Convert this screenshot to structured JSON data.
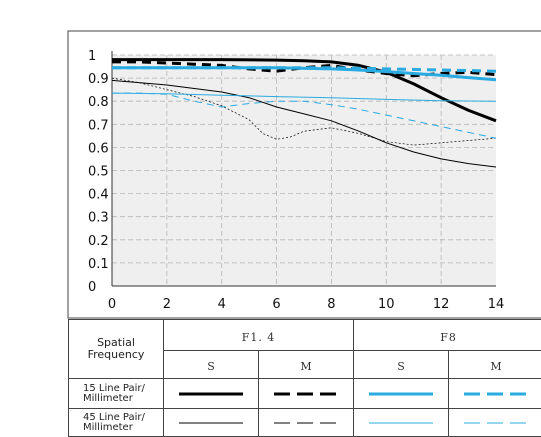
{
  "chart_data": {
    "type": "line",
    "title": "",
    "xlabel": "",
    "ylabel": "",
    "xlim": [
      0,
      14
    ],
    "ylim": [
      0,
      1
    ],
    "x_ticks": [
      "0",
      "2",
      "4",
      "6",
      "8",
      "10",
      "12",
      "14"
    ],
    "y_ticks": [
      "0",
      "0.1",
      "0.2",
      "0.3",
      "0.4",
      "0.5",
      "0.6",
      "0.7",
      "0.8",
      "0.9",
      "1"
    ],
    "grid": true,
    "series": [
      {
        "name": "F1.4 S 15 Line Pair/Millimeter",
        "color": "#000000",
        "dash": "solid",
        "weight": "thick",
        "x": [
          0,
          2,
          4,
          6,
          7,
          8,
          9,
          10,
          11,
          12,
          13,
          14
        ],
        "y": [
          0.98,
          0.98,
          0.98,
          0.978,
          0.975,
          0.97,
          0.955,
          0.925,
          0.875,
          0.815,
          0.76,
          0.715
        ]
      },
      {
        "name": "F1.4 M 15 Line Pair/Millimeter",
        "color": "#000000",
        "dash": "dashed",
        "weight": "thick",
        "x": [
          0,
          1,
          2,
          3,
          4,
          5,
          6,
          7,
          8,
          9,
          10,
          11,
          12,
          13,
          14
        ],
        "y": [
          0.97,
          0.97,
          0.965,
          0.96,
          0.955,
          0.94,
          0.93,
          0.945,
          0.955,
          0.935,
          0.92,
          0.91,
          0.92,
          0.925,
          0.915
        ]
      },
      {
        "name": "F8 S 15 Line Pair/Millimeter",
        "color": "#29abe2",
        "dash": "solid",
        "weight": "thick",
        "x": [
          0,
          2,
          4,
          6,
          8,
          9,
          10,
          11,
          12,
          13,
          14
        ],
        "y": [
          0.945,
          0.945,
          0.945,
          0.945,
          0.94,
          0.935,
          0.928,
          0.92,
          0.912,
          0.902,
          0.893
        ]
      },
      {
        "name": "F8 M 15 Line Pair/Millimeter",
        "color": "#29abe2",
        "dash": "dashed",
        "weight": "thick",
        "x": [
          0,
          2,
          4,
          6,
          8,
          10,
          12,
          14
        ],
        "y": [
          0.945,
          0.945,
          0.945,
          0.945,
          0.945,
          0.94,
          0.935,
          0.93
        ]
      },
      {
        "name": "F1.4 S 45 Line Pair/Millimeter",
        "color": "#000000",
        "dash": "solid",
        "weight": "thin",
        "x": [
          0,
          2,
          4,
          5,
          6,
          7,
          8,
          9,
          10,
          11,
          12,
          13,
          14
        ],
        "y": [
          0.89,
          0.87,
          0.84,
          0.815,
          0.775,
          0.745,
          0.715,
          0.67,
          0.62,
          0.58,
          0.55,
          0.53,
          0.515
        ]
      },
      {
        "name": "F1.4 M 45 Line Pair/Millimeter",
        "color": "#000000",
        "dash": "dotted",
        "weight": "thin",
        "x": [
          0,
          1,
          2,
          3,
          4,
          5,
          5.5,
          6,
          6.5,
          7,
          8,
          9,
          10,
          11,
          12,
          13,
          14
        ],
        "y": [
          0.9,
          0.88,
          0.85,
          0.82,
          0.78,
          0.72,
          0.66,
          0.635,
          0.645,
          0.67,
          0.685,
          0.66,
          0.625,
          0.61,
          0.62,
          0.63,
          0.64
        ]
      },
      {
        "name": "F8 S 45 Line Pair/Millimeter",
        "color": "#29abe2",
        "dash": "solid",
        "weight": "thin",
        "x": [
          0,
          2,
          4,
          6,
          8,
          10,
          12,
          14
        ],
        "y": [
          0.835,
          0.832,
          0.826,
          0.82,
          0.815,
          0.808,
          0.802,
          0.8
        ]
      },
      {
        "name": "F8 M 45 Line Pair/Millimeter",
        "color": "#29abe2",
        "dash": "dashed",
        "weight": "thin",
        "x": [
          0,
          1,
          2,
          3,
          4,
          5,
          6,
          7,
          8,
          9,
          10,
          11,
          12,
          13,
          14
        ],
        "y": [
          0.835,
          0.835,
          0.83,
          0.8,
          0.775,
          0.79,
          0.8,
          0.8,
          0.785,
          0.765,
          0.74,
          0.715,
          0.69,
          0.665,
          0.64
        ]
      }
    ]
  },
  "legend": {
    "row_header": "Spatial Frequency",
    "aperture_1": "F1. 4",
    "aperture_2": "F8",
    "col_s": "S",
    "col_m": "M",
    "row_15": "15 Line Pair/ Millimeter",
    "row_45": "45 Line Pair/ Millimeter"
  }
}
